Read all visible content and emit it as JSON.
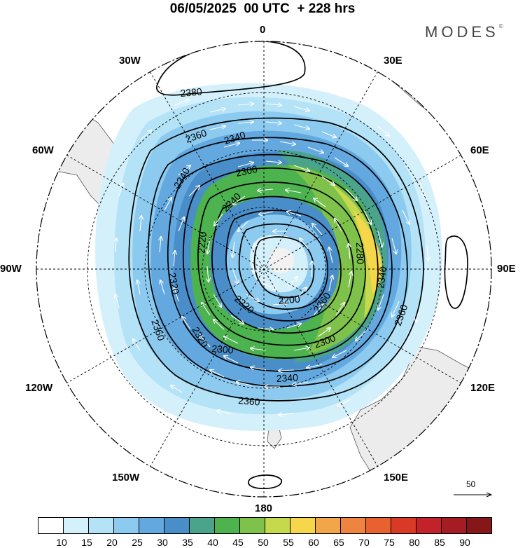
{
  "header": {
    "title": "06/05/2025  00 UTC  + 228 hrs",
    "brand": "MODES",
    "brand_mark": "©"
  },
  "map": {
    "projection": "south-polar-stereographic",
    "center_pole": "South Pole",
    "meridian_labels": [
      "0",
      "30E",
      "60E",
      "90E",
      "120E",
      "150E",
      "180",
      "150W",
      "120W",
      "90W",
      "60W",
      "30W"
    ],
    "contour_labels": [
      "2380",
      "2360",
      "2340",
      "2300",
      "2240",
      "2220",
      "2200",
      "2220",
      "2260",
      "2280",
      "2300",
      "2340",
      "2360",
      "2320",
      "2340",
      "2300",
      "2320",
      "2360",
      "2360",
      "2340"
    ],
    "wind_vector_reference": {
      "value": "50",
      "icon": "arrow-right-icon"
    },
    "field_description_colors": {
      "land": "#ececec",
      "coast": "#555555"
    }
  },
  "colorbar": {
    "ticks": [
      "10",
      "15",
      "20",
      "25",
      "30",
      "35",
      "40",
      "45",
      "50",
      "55",
      "60",
      "65",
      "70",
      "75",
      "80",
      "85",
      "90"
    ],
    "colors": [
      "#ffffff",
      "#d4f0fb",
      "#b4e2f6",
      "#8ccaef",
      "#63a9e0",
      "#4a8ec9",
      "#4aa38b",
      "#4cb34f",
      "#7fc24b",
      "#c6d84b",
      "#f6d64b",
      "#f2a64a",
      "#ef8440",
      "#e8612f",
      "#d93a27",
      "#c4222a",
      "#a61c24",
      "#861719"
    ]
  }
}
